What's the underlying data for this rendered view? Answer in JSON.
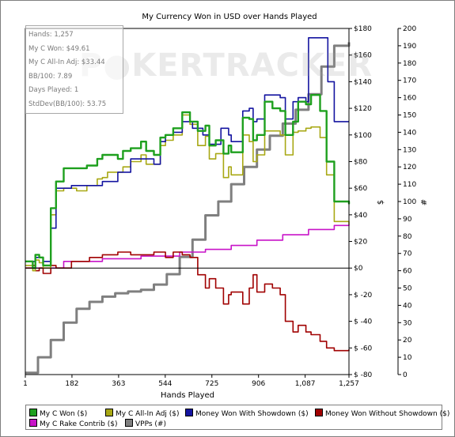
{
  "chart_data": {
    "type": "line",
    "title": "My Currency Won in USD over Hands Played",
    "xlabel": "Hands Played",
    "ylabel_left": "$",
    "ylabel_right": "#",
    "x_ticks": [
      "1",
      "182",
      "363",
      "544",
      "725",
      "906",
      "1,087",
      "1,257"
    ],
    "x_tick_values": [
      1,
      182,
      363,
      544,
      725,
      906,
      1087,
      1257
    ],
    "xlim": [
      1,
      1257
    ],
    "y_left_ticks": [
      "$180",
      "$160",
      "$140",
      "$120",
      "$100",
      "$80",
      "$60",
      "$40",
      "$20",
      "$0",
      "$ -20",
      "$ -40",
      "$ -60",
      "$ -80"
    ],
    "y_left_tick_values": [
      180,
      160,
      140,
      120,
      100,
      80,
      60,
      40,
      20,
      0,
      -20,
      -40,
      -60,
      -80
    ],
    "ylim_left": [
      -80,
      180
    ],
    "y_right_ticks": [
      "200",
      "190",
      "180",
      "170",
      "160",
      "150",
      "140",
      "130",
      "120",
      "110",
      "100",
      "90",
      "80",
      "70",
      "60",
      "50",
      "40",
      "30",
      "20",
      "10",
      "0"
    ],
    "y_right_tick_values": [
      200,
      190,
      180,
      170,
      160,
      150,
      140,
      130,
      120,
      110,
      100,
      90,
      80,
      70,
      60,
      50,
      40,
      30,
      20,
      10,
      0
    ],
    "ylim_right": [
      0,
      200
    ],
    "series": [
      {
        "name": "My C Won ($)",
        "color": "#1ea01e",
        "axis": "left",
        "points": [
          [
            1,
            5
          ],
          [
            30,
            0
          ],
          [
            40,
            10
          ],
          [
            55,
            8
          ],
          [
            70,
            2
          ],
          [
            100,
            45
          ],
          [
            120,
            65
          ],
          [
            150,
            75
          ],
          [
            200,
            75
          ],
          [
            240,
            77
          ],
          [
            280,
            82
          ],
          [
            300,
            85
          ],
          [
            320,
            85
          ],
          [
            360,
            82
          ],
          [
            380,
            88
          ],
          [
            410,
            90
          ],
          [
            450,
            95
          ],
          [
            470,
            88
          ],
          [
            500,
            85
          ],
          [
            525,
            98
          ],
          [
            545,
            100
          ],
          [
            575,
            105
          ],
          [
            610,
            117
          ],
          [
            640,
            110
          ],
          [
            670,
            103
          ],
          [
            700,
            107
          ],
          [
            715,
            92
          ],
          [
            740,
            96
          ],
          [
            770,
            86
          ],
          [
            790,
            92
          ],
          [
            800,
            87
          ],
          [
            845,
            113
          ],
          [
            870,
            112
          ],
          [
            885,
            96
          ],
          [
            900,
            100
          ],
          [
            930,
            125
          ],
          [
            960,
            120
          ],
          [
            990,
            118
          ],
          [
            1010,
            100
          ],
          [
            1040,
            110
          ],
          [
            1060,
            125
          ],
          [
            1090,
            123
          ],
          [
            1110,
            130
          ],
          [
            1145,
            118
          ],
          [
            1170,
            80
          ],
          [
            1200,
            50
          ],
          [
            1257,
            48
          ]
        ]
      },
      {
        "name": "My C All-In Adj ($)",
        "color": "#a8a814",
        "axis": "left",
        "points": [
          [
            1,
            2
          ],
          [
            30,
            -2
          ],
          [
            40,
            6
          ],
          [
            55,
            4
          ],
          [
            70,
            0
          ],
          [
            100,
            40
          ],
          [
            120,
            58
          ],
          [
            150,
            60
          ],
          [
            200,
            58
          ],
          [
            240,
            62
          ],
          [
            280,
            67
          ],
          [
            300,
            68
          ],
          [
            320,
            72
          ],
          [
            360,
            72
          ],
          [
            380,
            76
          ],
          [
            410,
            80
          ],
          [
            450,
            85
          ],
          [
            470,
            78
          ],
          [
            500,
            78
          ],
          [
            525,
            92
          ],
          [
            545,
            96
          ],
          [
            575,
            100
          ],
          [
            610,
            115
          ],
          [
            640,
            108
          ],
          [
            670,
            92
          ],
          [
            700,
            99
          ],
          [
            715,
            82
          ],
          [
            740,
            86
          ],
          [
            770,
            68
          ],
          [
            790,
            76
          ],
          [
            800,
            70
          ],
          [
            845,
            100
          ],
          [
            870,
            95
          ],
          [
            885,
            80
          ],
          [
            900,
            85
          ],
          [
            930,
            103
          ],
          [
            960,
            103
          ],
          [
            990,
            100
          ],
          [
            1010,
            85
          ],
          [
            1040,
            102
          ],
          [
            1060,
            103
          ],
          [
            1090,
            105
          ],
          [
            1110,
            106
          ],
          [
            1145,
            98
          ],
          [
            1170,
            70
          ],
          [
            1200,
            35
          ],
          [
            1257,
            33
          ]
        ]
      },
      {
        "name": "Money Won With Showdown ($)",
        "color": "#1414a0",
        "axis": "left",
        "points": [
          [
            1,
            5
          ],
          [
            30,
            5
          ],
          [
            40,
            8
          ],
          [
            60,
            8
          ],
          [
            70,
            5
          ],
          [
            100,
            30
          ],
          [
            120,
            60
          ],
          [
            180,
            62
          ],
          [
            300,
            65
          ],
          [
            360,
            72
          ],
          [
            410,
            82
          ],
          [
            470,
            82
          ],
          [
            500,
            78
          ],
          [
            525,
            95
          ],
          [
            545,
            100
          ],
          [
            575,
            102
          ],
          [
            610,
            110
          ],
          [
            650,
            105
          ],
          [
            690,
            100
          ],
          [
            715,
            93
          ],
          [
            760,
            105
          ],
          [
            790,
            100
          ],
          [
            800,
            95
          ],
          [
            845,
            118
          ],
          [
            870,
            120
          ],
          [
            885,
            110
          ],
          [
            900,
            112
          ],
          [
            930,
            130
          ],
          [
            960,
            130
          ],
          [
            990,
            128
          ],
          [
            1010,
            112
          ],
          [
            1040,
            125
          ],
          [
            1060,
            128
          ],
          [
            1090,
            125
          ],
          [
            1100,
            173
          ],
          [
            1150,
            173
          ],
          [
            1175,
            140
          ],
          [
            1200,
            110
          ],
          [
            1257,
            110
          ]
        ]
      },
      {
        "name": "Money Won Without Showdown ($)",
        "color": "#a00000",
        "axis": "left",
        "points": [
          [
            1,
            0
          ],
          [
            30,
            2
          ],
          [
            40,
            -2
          ],
          [
            55,
            0
          ],
          [
            70,
            -4
          ],
          [
            100,
            2
          ],
          [
            120,
            0
          ],
          [
            180,
            5
          ],
          [
            250,
            8
          ],
          [
            300,
            10
          ],
          [
            360,
            12
          ],
          [
            410,
            10
          ],
          [
            470,
            10
          ],
          [
            500,
            12
          ],
          [
            525,
            12
          ],
          [
            545,
            8
          ],
          [
            575,
            12
          ],
          [
            610,
            10
          ],
          [
            640,
            8
          ],
          [
            670,
            -5
          ],
          [
            700,
            -15
          ],
          [
            715,
            -8
          ],
          [
            740,
            -15
          ],
          [
            770,
            -27
          ],
          [
            790,
            -20
          ],
          [
            800,
            -18
          ],
          [
            845,
            -27
          ],
          [
            870,
            -15
          ],
          [
            885,
            -5
          ],
          [
            900,
            -18
          ],
          [
            930,
            -12
          ],
          [
            960,
            -15
          ],
          [
            990,
            -20
          ],
          [
            1010,
            -40
          ],
          [
            1040,
            -48
          ],
          [
            1060,
            -43
          ],
          [
            1090,
            -48
          ],
          [
            1110,
            -50
          ],
          [
            1145,
            -55
          ],
          [
            1170,
            -60
          ],
          [
            1200,
            -62
          ],
          [
            1257,
            -61
          ]
        ]
      },
      {
        "name": "My C Rake Contrib ($)",
        "color": "#c814c8",
        "axis": "left",
        "points": [
          [
            1,
            0
          ],
          [
            150,
            5
          ],
          [
            300,
            7
          ],
          [
            450,
            9
          ],
          [
            600,
            12
          ],
          [
            700,
            14
          ],
          [
            800,
            17
          ],
          [
            900,
            21
          ],
          [
            1000,
            25
          ],
          [
            1100,
            29
          ],
          [
            1200,
            32
          ],
          [
            1257,
            33
          ]
        ]
      },
      {
        "name": "VPPs (#)",
        "color": "#7f7f7f",
        "axis": "right",
        "points": [
          [
            1,
            1
          ],
          [
            50,
            10
          ],
          [
            100,
            20
          ],
          [
            150,
            30
          ],
          [
            200,
            38
          ],
          [
            250,
            42
          ],
          [
            300,
            45
          ],
          [
            350,
            47
          ],
          [
            400,
            48
          ],
          [
            450,
            49
          ],
          [
            500,
            52
          ],
          [
            550,
            58
          ],
          [
            600,
            68
          ],
          [
            650,
            78
          ],
          [
            700,
            92
          ],
          [
            750,
            100
          ],
          [
            800,
            110
          ],
          [
            850,
            120
          ],
          [
            900,
            130
          ],
          [
            950,
            138
          ],
          [
            1000,
            145
          ],
          [
            1050,
            153
          ],
          [
            1100,
            162
          ],
          [
            1150,
            178
          ],
          [
            1200,
            190
          ],
          [
            1257,
            192
          ]
        ]
      }
    ]
  },
  "stats": [
    "Hands: 1,257",
    "My C Won: $49.61",
    "My C All-In Adj: $33.44",
    "BB/100: 7.89",
    "Days Played: 1",
    "StdDev(BB/100): 53.75"
  ],
  "watermark": "P●KERTRACKER",
  "legend": [
    {
      "label": "My C Won ($)",
      "color": "#1ea01e"
    },
    {
      "label": "My C All-In Adj ($)",
      "color": "#a8a814"
    },
    {
      "label": "Money Won With Showdown ($)",
      "color": "#1414a0"
    },
    {
      "label": "Money Won Without Showdown ($)",
      "color": "#a00000"
    },
    {
      "label": "My C Rake Contrib ($)",
      "color": "#c814c8"
    },
    {
      "label": "VPPs (#)",
      "color": "#7f7f7f"
    }
  ]
}
